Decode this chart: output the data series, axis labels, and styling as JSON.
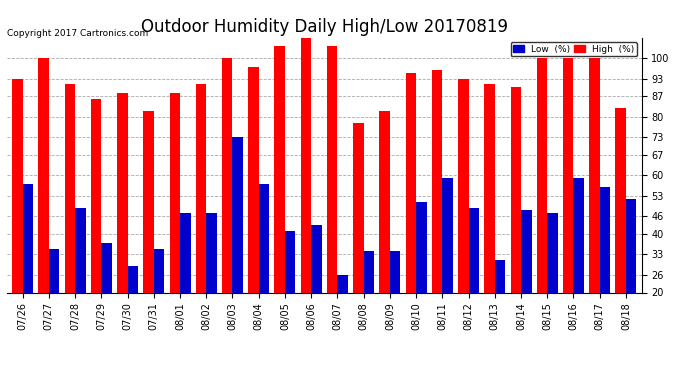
{
  "title": "Outdoor Humidity Daily High/Low 20170819",
  "copyright": "Copyright 2017 Cartronics.com",
  "dates": [
    "07/26",
    "07/27",
    "07/28",
    "07/29",
    "07/30",
    "07/31",
    "08/01",
    "08/02",
    "08/03",
    "08/04",
    "08/05",
    "08/06",
    "08/07",
    "08/08",
    "08/09",
    "08/10",
    "08/11",
    "08/12",
    "08/13",
    "08/14",
    "08/15",
    "08/16",
    "08/17",
    "08/18"
  ],
  "high": [
    93,
    100,
    91,
    86,
    88,
    82,
    88,
    91,
    100,
    97,
    104,
    107,
    104,
    78,
    82,
    95,
    96,
    93,
    91,
    90,
    100,
    100,
    100,
    83
  ],
  "low": [
    57,
    35,
    49,
    37,
    29,
    35,
    47,
    47,
    73,
    57,
    41,
    43,
    26,
    34,
    34,
    51,
    59,
    49,
    31,
    48,
    47,
    59,
    56,
    52
  ],
  "high_color": "#ff0000",
  "low_color": "#0000cc",
  "bg_color": "#ffffff",
  "grid_color": "#aaaaaa",
  "ymin": 20,
  "ymax": 107,
  "yticks": [
    20,
    26,
    33,
    40,
    46,
    53,
    60,
    67,
    73,
    80,
    87,
    93,
    100
  ],
  "bar_width": 0.4,
  "title_fontsize": 12,
  "tick_fontsize": 7,
  "copyright_fontsize": 6.5,
  "legend_low_label": "Low  (%)",
  "legend_high_label": "High  (%)"
}
